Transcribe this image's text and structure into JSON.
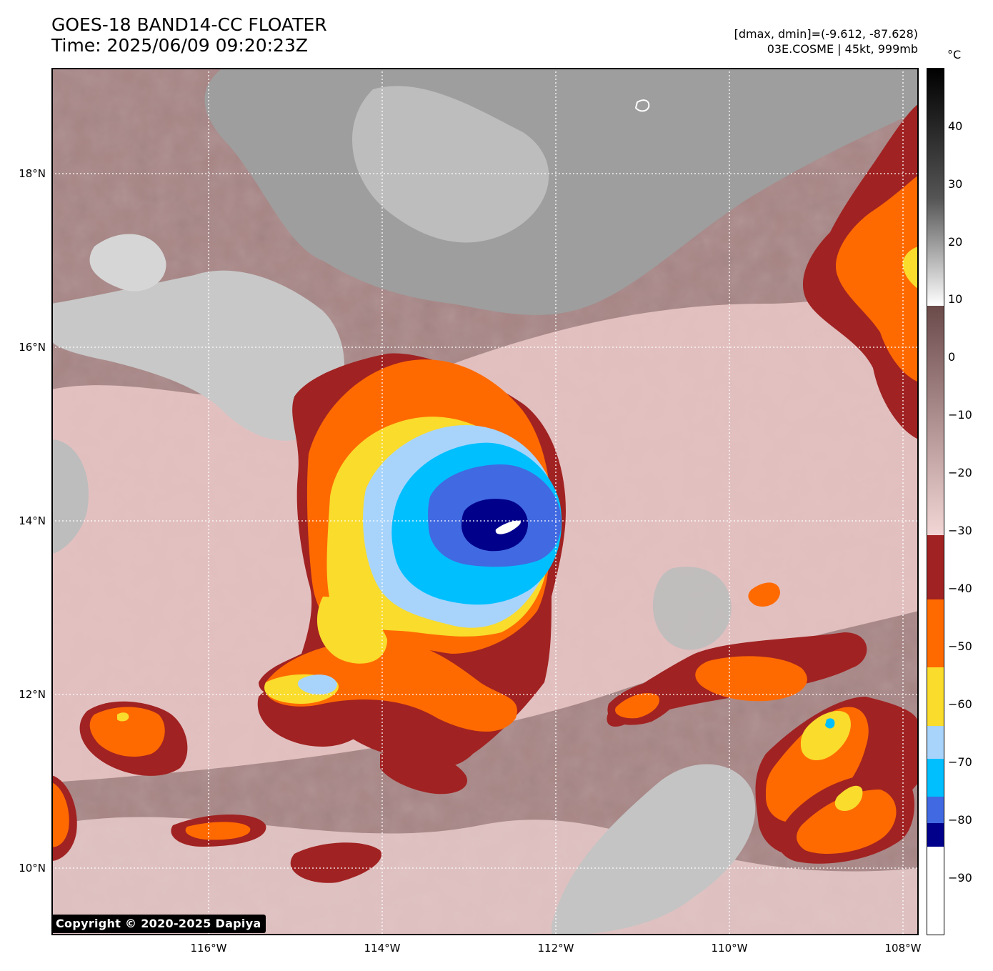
{
  "header": {
    "title_line1": "GOES-18 BAND14-CC FLOATER",
    "title_line2": "Time: 2025/06/09 09:20:23Z",
    "info_line1": "[dmax, dmin]=(-9.612, -87.628)",
    "info_line2": "03E.COSME | 45kt, 999mb"
  },
  "map": {
    "lat_labels": [
      "18°N",
      "16°N",
      "14°N",
      "12°N",
      "10°N"
    ],
    "lon_labels": [
      "116°W",
      "114°W",
      "112°W",
      "110°W",
      "108°W"
    ],
    "copyright": "Copyright © 2020-2025 Dapiya"
  },
  "colorbar": {
    "unit": "°C",
    "ticks": [
      "40",
      "30",
      "20",
      "10",
      "0",
      "−10",
      "−20",
      "−30",
      "−40",
      "−50",
      "−60",
      "−70",
      "−80",
      "−90"
    ],
    "colors": {
      "warm_black": "#000000",
      "warm_white": "#ffffff",
      "brown_dark": "#6b4a4a",
      "pink_light": "#f2d6d6",
      "dark_red": "#a12222",
      "orange": "#ff6a00",
      "yellow": "#f9dc2c",
      "light_blue": "#a8d4fb",
      "cyan": "#00bfff",
      "royal_blue": "#4169e1",
      "navy": "#00008b"
    }
  }
}
